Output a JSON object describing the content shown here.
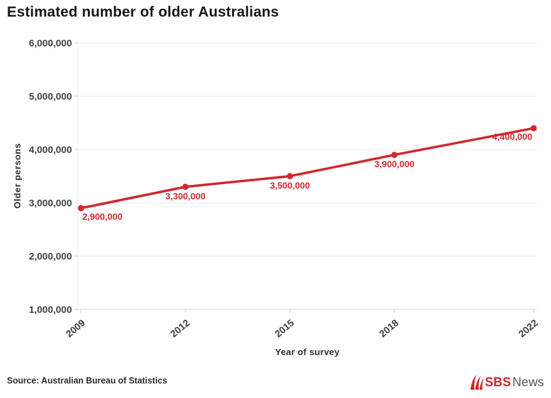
{
  "header": {
    "title": "Estimated number of older Australians"
  },
  "footer": {
    "source": "Source: Australian Bureau of Statistics",
    "logo": {
      "sbs": "SBS",
      "news": "News"
    }
  },
  "colors": {
    "line": "#d2262d",
    "point": "#d2262d",
    "point_label": "#d2262d",
    "grid": "#ececec",
    "axis_line": "#d9d9d9",
    "tick_mark": "#c9c9c9",
    "tick_text": "#3f3f3f",
    "title_text": "#161616",
    "sbs_red": "#d2232a",
    "news_gray": "#53565a",
    "background": "#ffffff"
  },
  "chart_data": {
    "type": "line",
    "title": "Estimated number of older Australians",
    "xlabel": "Year of survey",
    "ylabel": "Older persons",
    "x": [
      2009,
      2012,
      2015,
      2018,
      2022
    ],
    "x_tick_labels": [
      "2009",
      "2012",
      "2015",
      "2018",
      "2022"
    ],
    "values": [
      2900000,
      3300000,
      3500000,
      3900000,
      4400000
    ],
    "point_labels": [
      "2,900,000",
      "3,300,000",
      "3,500,000",
      "3,900,000",
      "4,400,000"
    ],
    "y_ticks": [
      1000000,
      2000000,
      3000000,
      4000000,
      5000000,
      6000000
    ],
    "y_tick_labels": [
      "1,000,000",
      "2,000,000",
      "3,000,000",
      "4,000,000",
      "5,000,000",
      "6,000,000"
    ],
    "ylim": [
      1000000,
      6000000
    ],
    "xlim": [
      2009,
      2022
    ],
    "grid": "horizontal",
    "legend": "none",
    "marker": "circle"
  }
}
